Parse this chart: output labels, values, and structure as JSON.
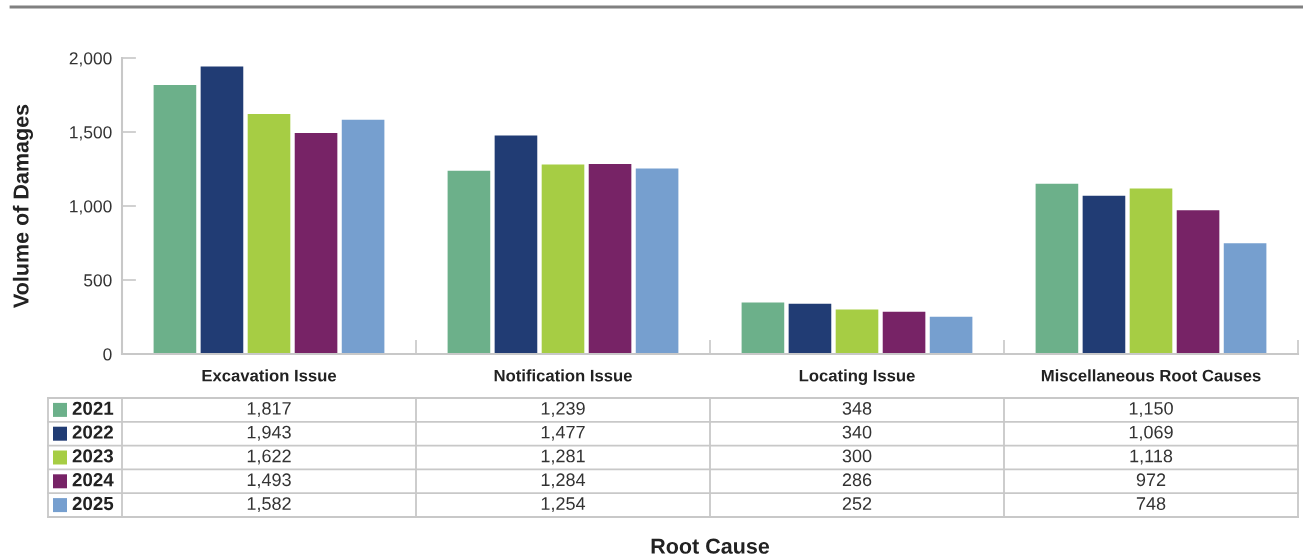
{
  "chart_data": {
    "type": "bar",
    "ylabel": "Volume of Damages",
    "categories": [
      "Excavation Issue",
      "Notification Issue",
      "Locating Issue",
      "Miscellaneous Root Causes"
    ],
    "series": [
      {
        "name": "2021",
        "color": "#6cb08a",
        "values": [
          1817,
          1239,
          348,
          1150
        ],
        "value_labels": [
          "1,817",
          "1,239",
          "348",
          "1,150"
        ]
      },
      {
        "name": "2022",
        "color": "#213c74",
        "values": [
          1943,
          1477,
          340,
          1069
        ],
        "value_labels": [
          "1,943",
          "1,477",
          "340",
          "1,069"
        ]
      },
      {
        "name": "2023",
        "color": "#a6cd44",
        "values": [
          1622,
          1281,
          300,
          1118
        ],
        "value_labels": [
          "1,622",
          "1,281",
          "300",
          "1,118"
        ]
      },
      {
        "name": "2024",
        "color": "#772366",
        "values": [
          1493,
          1284,
          286,
          972
        ],
        "value_labels": [
          "1,493",
          "1,284",
          "286",
          "972"
        ]
      },
      {
        "name": "2025",
        "color": "#769fcf",
        "values": [
          1582,
          1254,
          252,
          748
        ],
        "value_labels": [
          "1,582",
          "1,254",
          "252",
          "748"
        ]
      }
    ],
    "ylim": [
      0,
      2000
    ],
    "yticks": [
      0,
      500,
      {
        "value": 1000,
        "label": "1,000"
      },
      {
        "value": 1500,
        "label": "1,500"
      },
      {
        "value": 2000,
        "label": "2,000"
      }
    ],
    "legend": "bottom",
    "annotations": [
      "Root Cause"
    ]
  }
}
